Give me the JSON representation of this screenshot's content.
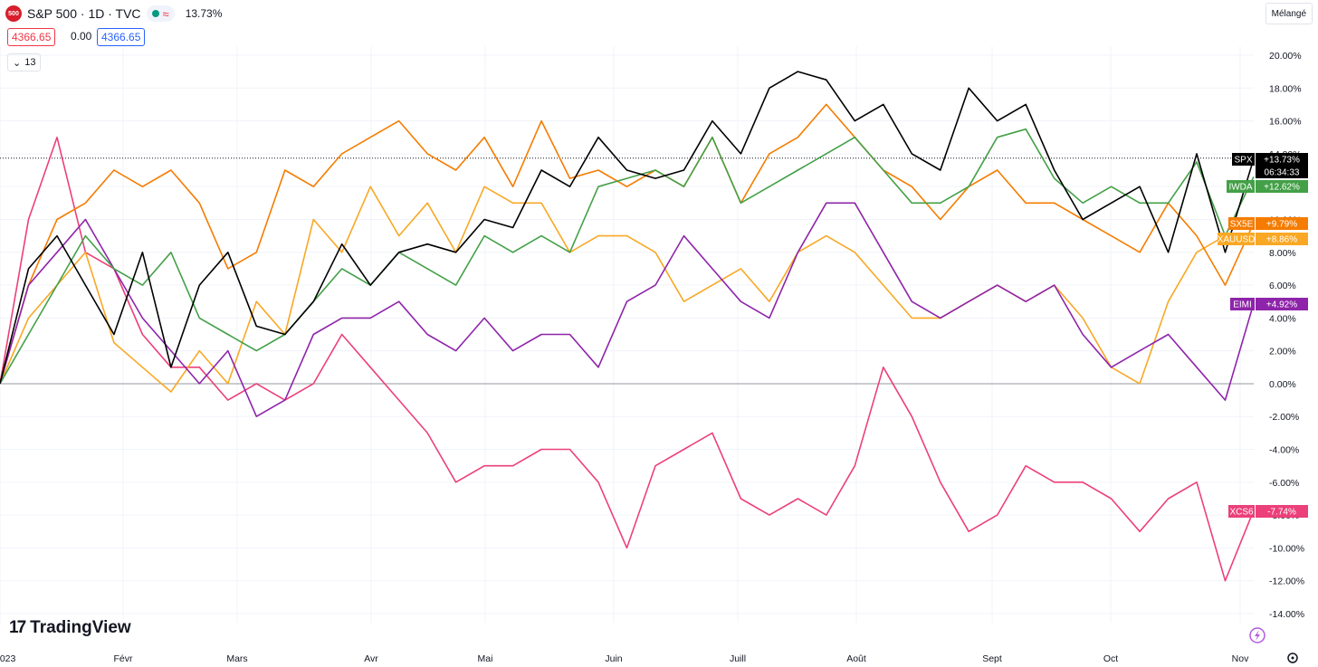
{
  "header": {
    "logo_text": "500",
    "title": "S&P 500 · 1D · TVC",
    "wave": "≈",
    "change": "13.73%"
  },
  "prices": {
    "red": "4366.65",
    "mid": "0.00",
    "blue": "4366.65"
  },
  "collapse": {
    "label": "13"
  },
  "mode_button": "Mélangé",
  "brand": "TradingView",
  "countdown": "06:34:33",
  "chart_data": {
    "type": "line",
    "x_labels": [
      "2023",
      "Févr",
      "Mars",
      "Avr",
      "Mai",
      "Juin",
      "Juill",
      "Août",
      "Sept",
      "Oct",
      "Nov"
    ],
    "y_ticks": [
      20,
      18,
      16,
      14,
      12,
      10,
      8,
      6,
      4,
      2,
      0,
      -2,
      -4,
      -6,
      -8,
      -10,
      -12,
      -14
    ],
    "y_tick_labels": [
      "20.00%",
      "18.00%",
      "16.00%",
      "14.00%",
      "12.00%",
      "10.00%",
      "8.00%",
      "6.00%",
      "4.00%",
      "2.00%",
      "0.00%",
      "-2.00%",
      "-4.00%",
      "-6.00%",
      "-8.00%",
      "-10.00%",
      "-12.00%",
      "-14.00%"
    ],
    "ylim": [
      -14,
      20
    ],
    "dotted_level": 13.73,
    "series": [
      {
        "name": "SPX",
        "color": "#000000",
        "last_label": "+13.73%",
        "values": [
          0,
          7,
          9,
          6,
          3,
          8,
          1,
          6,
          8,
          3.5,
          3,
          5,
          8.5,
          6,
          8,
          8.5,
          8,
          10,
          9.5,
          13,
          12,
          15,
          13,
          12.5,
          13,
          16,
          14,
          18,
          19,
          18.5,
          16,
          17,
          14,
          13,
          18,
          16,
          17,
          13,
          10,
          11,
          12,
          8,
          14,
          8,
          13.7
        ]
      },
      {
        "name": "IWDA",
        "color": "#43a047",
        "last_label": "+12.62%",
        "values": [
          0,
          3,
          6,
          9,
          7,
          6,
          8,
          4,
          3,
          2,
          3,
          5,
          7,
          6,
          8,
          7,
          6,
          9,
          8,
          9,
          8,
          12,
          12.5,
          13,
          12,
          15,
          11,
          12,
          13,
          14,
          15,
          13,
          11,
          11,
          12,
          15,
          15.5,
          12.5,
          11,
          12,
          11,
          11,
          13.5,
          9,
          12.6
        ]
      },
      {
        "name": "SX5E",
        "color": "#f57c00",
        "last_label": "+9.79%",
        "values": [
          0,
          6,
          10,
          11,
          13,
          12,
          13,
          11,
          7,
          8,
          13,
          12,
          14,
          15,
          16,
          14,
          13,
          15,
          12,
          16,
          12.5,
          13,
          12,
          13,
          12,
          15,
          11,
          14,
          15,
          17,
          15,
          13,
          12,
          10,
          12,
          13,
          11,
          11,
          10,
          9,
          8,
          11,
          9,
          6,
          9.8
        ]
      },
      {
        "name": "XAUUSD",
        "color": "#f9a825",
        "last_label": "+8.86%",
        "values": [
          0,
          4,
          6,
          8,
          2.5,
          1,
          -0.5,
          2,
          0,
          5,
          3,
          10,
          8,
          12,
          9,
          11,
          8,
          12,
          11,
          11,
          8,
          9,
          9,
          8,
          5,
          6,
          7,
          5,
          8,
          9,
          8,
          6,
          4,
          4,
          5,
          6,
          5,
          6,
          4,
          1,
          0,
          5,
          8,
          9,
          8.9
        ]
      },
      {
        "name": "EIMI",
        "color": "#8e24aa",
        "last_label": "+4.92%",
        "values": [
          0,
          6,
          8,
          10,
          7,
          4,
          2,
          0,
          2,
          -2,
          -1,
          3,
          4,
          4,
          5,
          3,
          2,
          4,
          2,
          3,
          3,
          1,
          5,
          6,
          9,
          7,
          5,
          4,
          8,
          11,
          11,
          8,
          5,
          4,
          5,
          6,
          5,
          6,
          3,
          1,
          2,
          3,
          1,
          -1,
          4.9
        ]
      },
      {
        "name": "XCS6",
        "color": "#ec407a",
        "last_label": "-7.74%",
        "values": [
          0,
          10,
          15,
          8,
          7,
          3,
          1,
          1,
          -1,
          0,
          -1,
          0,
          3,
          1,
          -1,
          -3,
          -6,
          -5,
          -5,
          -4,
          -4,
          -6,
          -10,
          -5,
          -4,
          -3,
          -7,
          -8,
          -7,
          -8,
          -5,
          1,
          -2,
          -6,
          -9,
          -8,
          -5,
          -6,
          -6,
          -7,
          -9,
          -7,
          -6,
          -12,
          -7.7
        ]
      }
    ]
  }
}
